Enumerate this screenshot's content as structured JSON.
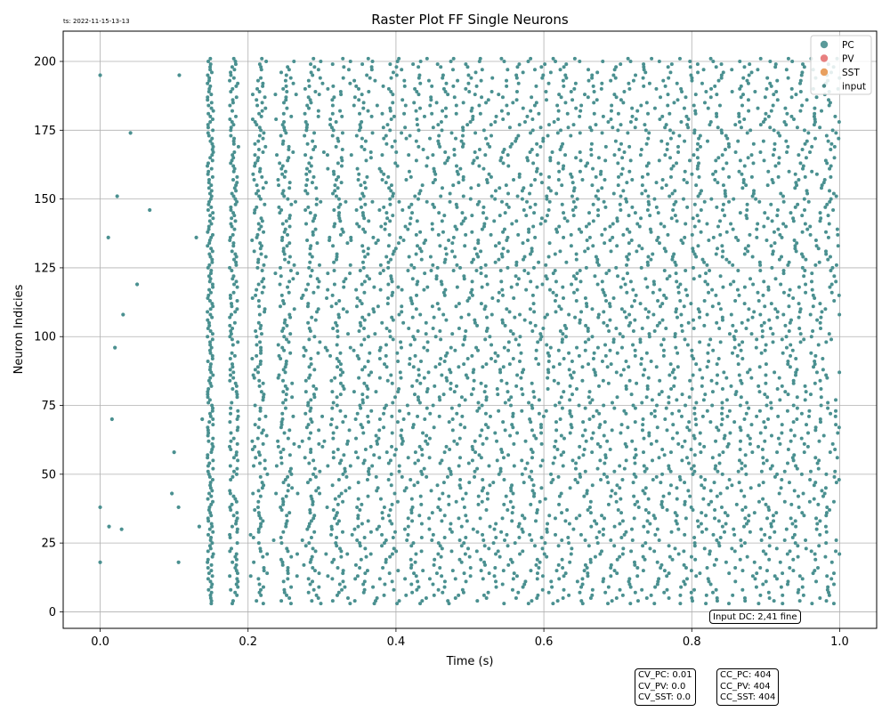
{
  "timestamp": "ts: 2022-11-15-13-13",
  "stats_cv": [
    "CV_PC: 0.01",
    "CV_PV: 0.0",
    "CV_SST: 0.0"
  ],
  "stats_cc": [
    "CC_PC: 404",
    "CC_PV: 404",
    "CC_SST: 404"
  ],
  "input_dc": "Input DC: 2,41 fine",
  "chart_data": {
    "type": "scatter",
    "title": "Raster Plot FF Single Neurons",
    "xlabel": "Time (s)",
    "ylabel": "Neuron Indicies",
    "xlim": [
      -0.05,
      1.05
    ],
    "ylim": [
      -6,
      211
    ],
    "xticks": [
      0.0,
      0.2,
      0.4,
      0.6,
      0.8,
      1.0
    ],
    "xtick_labels": [
      "0.0",
      "0.2",
      "0.4",
      "0.6",
      "0.8",
      "1.0"
    ],
    "yticks": [
      0,
      25,
      50,
      75,
      100,
      125,
      150,
      175,
      200
    ],
    "ytick_labels": [
      "0",
      "25",
      "50",
      "75",
      "100",
      "125",
      "150",
      "175",
      "200"
    ],
    "grid": true,
    "legend_position": "top-right",
    "legend": [
      {
        "label": "PC",
        "color": "#5a9a9a",
        "marker": "large-dot"
      },
      {
        "label": "PV",
        "color": "#e88080",
        "marker": "large-dot"
      },
      {
        "label": "SST",
        "color": "#e8a060",
        "marker": "large-dot"
      },
      {
        "label": "input",
        "color": "#4a8a8a",
        "marker": "small-dot"
      }
    ],
    "spike_color": "#4a9090",
    "neuron_range": [
      3,
      201
    ],
    "spike_time_range": [
      0.145,
      1.0
    ],
    "spike_onset_time": 0.145,
    "early_spikes": [
      {
        "x": 0.0,
        "y": 195
      },
      {
        "x": 0.0,
        "y": 38
      },
      {
        "x": 0.0,
        "y": 18
      },
      {
        "x": 0.011,
        "y": 136
      },
      {
        "x": 0.012,
        "y": 31
      },
      {
        "x": 0.016,
        "y": 70
      },
      {
        "x": 0.02,
        "y": 96
      },
      {
        "x": 0.023,
        "y": 151
      },
      {
        "x": 0.029,
        "y": 30
      },
      {
        "x": 0.031,
        "y": 108
      },
      {
        "x": 0.041,
        "y": 174
      },
      {
        "x": 0.05,
        "y": 119
      },
      {
        "x": 0.067,
        "y": 146
      },
      {
        "x": 0.1,
        "y": 58
      },
      {
        "x": 0.097,
        "y": 43
      },
      {
        "x": 0.107,
        "y": 195
      },
      {
        "x": 0.106,
        "y": 38
      },
      {
        "x": 0.106,
        "y": 18
      },
      {
        "x": 0.13,
        "y": 136
      },
      {
        "x": 0.134,
        "y": 31
      },
      {
        "x": 0.138,
        "y": 70
      }
    ]
  }
}
